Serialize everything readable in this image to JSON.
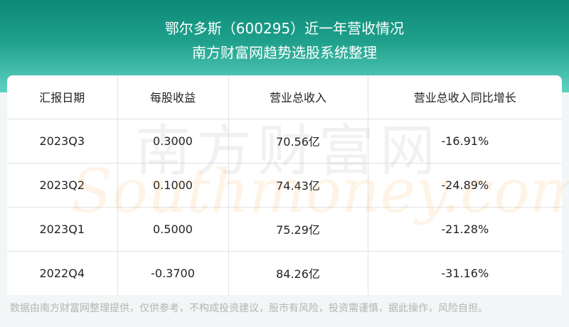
{
  "header": {
    "title": "鄂尔多斯（600295）近一年营收情况",
    "subtitle": "南方财富网趋势选股系统整理"
  },
  "table": {
    "columns": [
      "汇报日期",
      "每股收益",
      "营业总收入",
      "营业总收入同比增长"
    ],
    "rows": [
      [
        "2023Q3",
        "0.3000",
        "70.56亿",
        "-16.91%"
      ],
      [
        "2023Q2",
        "0.1000",
        "74.43亿",
        "-24.89%"
      ],
      [
        "2023Q1",
        "0.5000",
        "75.29亿",
        "-21.28%"
      ],
      [
        "2022Q4",
        "-0.3700",
        "84.26亿",
        "-31.16%"
      ]
    ]
  },
  "watermark": {
    "cn": "南方财富网",
    "en": "Southmoney.com"
  },
  "footer": "数据由南方财富网整理提供，仅供参考，不构成投资建议，股市有风险，投资需谨慎，据此操作，风险自担。",
  "colors": {
    "header_top": "#0c8a78",
    "header_bottom": "#5fd2c2"
  }
}
